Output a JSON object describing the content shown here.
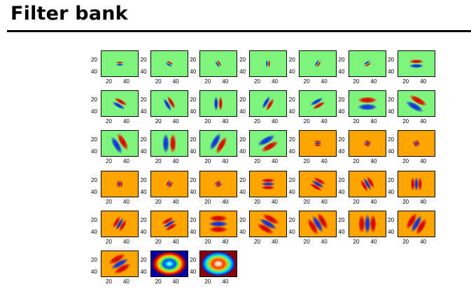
{
  "title": "Filter bank",
  "axis_ticks": {
    "y": [
      "20",
      "40"
    ],
    "x": [
      "20",
      "40"
    ]
  },
  "colors": {
    "green_bg": "#7df57d",
    "orange_bg": "#ffa500",
    "positive": "#d40000",
    "negative": "#0a2ee0"
  },
  "filters": [
    {
      "type": "edge",
      "bg": "green",
      "angle": 0,
      "scale": 1
    },
    {
      "type": "edge",
      "bg": "green",
      "angle": 30,
      "scale": 1
    },
    {
      "type": "edge",
      "bg": "green",
      "angle": 60,
      "scale": 1
    },
    {
      "type": "edge",
      "bg": "green",
      "angle": 90,
      "scale": 1
    },
    {
      "type": "edge",
      "bg": "green",
      "angle": 120,
      "scale": 1
    },
    {
      "type": "edge",
      "bg": "green",
      "angle": 150,
      "scale": 1
    },
    {
      "type": "edge",
      "bg": "green",
      "angle": 0,
      "scale": 2
    },
    {
      "type": "edge",
      "bg": "green",
      "angle": 30,
      "scale": 2
    },
    {
      "type": "edge",
      "bg": "green",
      "angle": 60,
      "scale": 2
    },
    {
      "type": "edge",
      "bg": "green",
      "angle": 90,
      "scale": 2
    },
    {
      "type": "edge",
      "bg": "green",
      "angle": 120,
      "scale": 2
    },
    {
      "type": "edge",
      "bg": "green",
      "angle": 150,
      "scale": 2
    },
    {
      "type": "edge",
      "bg": "green",
      "angle": 0,
      "scale": 3
    },
    {
      "type": "edge",
      "bg": "green",
      "angle": 30,
      "scale": 3
    },
    {
      "type": "edge",
      "bg": "green",
      "angle": 60,
      "scale": 3
    },
    {
      "type": "edge",
      "bg": "green",
      "angle": 90,
      "scale": 3
    },
    {
      "type": "edge",
      "bg": "green",
      "angle": 120,
      "scale": 3
    },
    {
      "type": "edge",
      "bg": "green",
      "angle": 150,
      "scale": 3
    },
    {
      "type": "bar",
      "bg": "orange",
      "angle": 0,
      "scale": 1
    },
    {
      "type": "bar",
      "bg": "orange",
      "angle": 30,
      "scale": 1
    },
    {
      "type": "bar",
      "bg": "orange",
      "angle": 60,
      "scale": 1
    },
    {
      "type": "bar",
      "bg": "orange",
      "angle": 90,
      "scale": 1
    },
    {
      "type": "bar",
      "bg": "orange",
      "angle": 120,
      "scale": 1
    },
    {
      "type": "bar",
      "bg": "orange",
      "angle": 150,
      "scale": 1
    },
    {
      "type": "bar",
      "bg": "orange",
      "angle": 0,
      "scale": 2
    },
    {
      "type": "bar",
      "bg": "orange",
      "angle": 30,
      "scale": 2
    },
    {
      "type": "bar",
      "bg": "orange",
      "angle": 60,
      "scale": 2
    },
    {
      "type": "bar",
      "bg": "orange",
      "angle": 90,
      "scale": 2
    },
    {
      "type": "bar",
      "bg": "orange",
      "angle": 120,
      "scale": 2
    },
    {
      "type": "bar",
      "bg": "orange",
      "angle": 150,
      "scale": 2
    },
    {
      "type": "bar",
      "bg": "orange",
      "angle": 0,
      "scale": 3
    },
    {
      "type": "bar",
      "bg": "orange",
      "angle": 30,
      "scale": 3
    },
    {
      "type": "bar",
      "bg": "orange",
      "angle": 60,
      "scale": 3
    },
    {
      "type": "bar",
      "bg": "orange",
      "angle": 90,
      "scale": 3
    },
    {
      "type": "bar",
      "bg": "orange",
      "angle": 120,
      "scale": 3
    },
    {
      "type": "bar",
      "bg": "orange",
      "angle": 150,
      "scale": 3
    },
    {
      "type": "spot",
      "polarity": "center-on"
    },
    {
      "type": "spot",
      "polarity": "center-off"
    }
  ]
}
